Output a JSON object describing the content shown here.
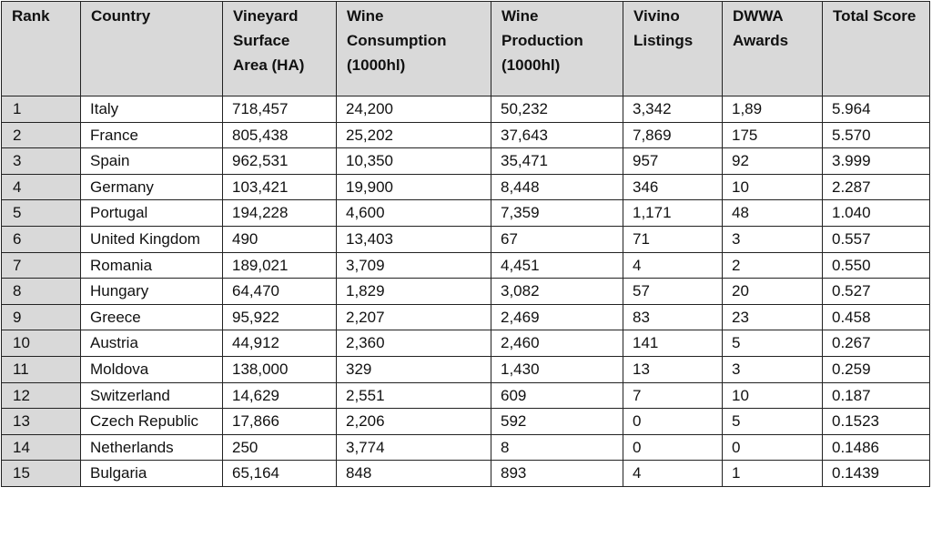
{
  "table": {
    "headers": [
      "Rank",
      "Country",
      "Vineyard Surface Area (HA)",
      "Wine Consumption (1000hl)",
      "Wine Production (1000hl)",
      "Vivino Listings",
      "DWWA Awards",
      "Total Score"
    ],
    "rows": [
      [
        "1",
        "Italy",
        "718,457",
        "24,200",
        "50,232",
        "3,342",
        "1,89",
        "5.964"
      ],
      [
        "2",
        "France",
        "805,438",
        "25,202",
        "37,643",
        "7,869",
        "175",
        "5.570"
      ],
      [
        "3",
        "Spain",
        "962,531",
        "10,350",
        "35,471",
        "957",
        "92",
        "3.999"
      ],
      [
        "4",
        "Germany",
        "103,421",
        "19,900",
        "8,448",
        "346",
        "10",
        "2.287"
      ],
      [
        "5",
        "Portugal",
        "194,228",
        "4,600",
        "7,359",
        "1,171",
        "48",
        "1.040"
      ],
      [
        "6",
        "United Kingdom",
        "490",
        "13,403",
        "67",
        "71",
        "3",
        "0.557"
      ],
      [
        "7",
        "Romania",
        "189,021",
        "3,709",
        "4,451",
        "4",
        "2",
        "0.550"
      ],
      [
        "8",
        "Hungary",
        "64,470",
        "1,829",
        "3,082",
        "57",
        "20",
        "0.527"
      ],
      [
        "9",
        "Greece",
        "95,922",
        "2,207",
        "2,469",
        "83",
        "23",
        "0.458"
      ],
      [
        "10",
        "Austria",
        "44,912",
        "2,360",
        "2,460",
        "141",
        "5",
        "0.267"
      ],
      [
        "11",
        "Moldova",
        "138,000",
        "329",
        "1,430",
        "13",
        "3",
        "0.259"
      ],
      [
        "12",
        "Switzerland",
        "14,629",
        "2,551",
        "609",
        "7",
        "10",
        "0.187"
      ],
      [
        "13",
        "Czech Republic",
        "17,866",
        "2,206",
        "592",
        "0",
        "5",
        "0.1523"
      ],
      [
        "14",
        "Netherlands",
        "250",
        "3,774",
        "8",
        "0",
        "0",
        "0.1486"
      ],
      [
        "15",
        "Bulgaria",
        "65,164",
        "848",
        "893",
        "4",
        "1",
        "0.1439"
      ]
    ]
  }
}
